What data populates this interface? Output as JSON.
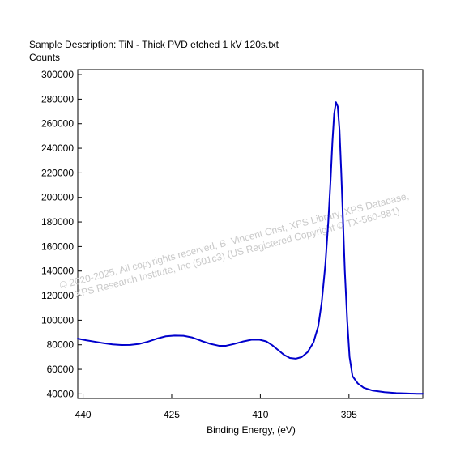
{
  "chart_data": {
    "type": "line",
    "title": "Sample Description:  TiN - Thick PVD etched 1 kV 120s.txt",
    "ylabel": "Counts",
    "xlabel": "Binding Energy, (eV)",
    "x_reversed": true,
    "xlim": [
      440.9,
      382.5
    ],
    "ylim": [
      36300,
      304000
    ],
    "x_ticks": [
      440,
      425,
      410,
      395
    ],
    "y_ticks": [
      40000,
      60000,
      80000,
      100000,
      120000,
      140000,
      160000,
      180000,
      200000,
      220000,
      240000,
      260000,
      280000,
      300000
    ],
    "grid": false,
    "legend": "none",
    "series": [
      {
        "color": "#0000cc",
        "points": [
          [
            440.9,
            85000
          ],
          [
            439.5,
            83700
          ],
          [
            438,
            82500
          ],
          [
            436.5,
            81300
          ],
          [
            435,
            80300
          ],
          [
            433.5,
            79800
          ],
          [
            432,
            79900
          ],
          [
            430.5,
            80700
          ],
          [
            429,
            82600
          ],
          [
            427.5,
            85000
          ],
          [
            426,
            86900
          ],
          [
            424.5,
            87500
          ],
          [
            423,
            87300
          ],
          [
            421.5,
            85900
          ],
          [
            420,
            83200
          ],
          [
            418.5,
            80800
          ],
          [
            417,
            79200
          ],
          [
            415.8,
            79200
          ],
          [
            414.5,
            80600
          ],
          [
            413,
            82600
          ],
          [
            411.5,
            84100
          ],
          [
            410.2,
            84200
          ],
          [
            409,
            82800
          ],
          [
            408,
            79700
          ],
          [
            407,
            75800
          ],
          [
            406,
            71800
          ],
          [
            405,
            69300
          ],
          [
            404,
            68700
          ],
          [
            403,
            70000
          ],
          [
            402,
            74000
          ],
          [
            401,
            82000
          ],
          [
            400.2,
            95000
          ],
          [
            399.6,
            115000
          ],
          [
            399,
            145000
          ],
          [
            398.5,
            180000
          ],
          [
            398.1,
            215000
          ],
          [
            397.8,
            245000
          ],
          [
            397.5,
            268000
          ],
          [
            397.2,
            277500
          ],
          [
            396.9,
            274000
          ],
          [
            396.6,
            255000
          ],
          [
            396.3,
            220000
          ],
          [
            396,
            180000
          ],
          [
            395.7,
            140000
          ],
          [
            395.3,
            100000
          ],
          [
            394.9,
            70000
          ],
          [
            394.4,
            54500
          ],
          [
            393.5,
            48500
          ],
          [
            392.5,
            45000
          ],
          [
            391,
            42700
          ],
          [
            389,
            41400
          ],
          [
            387,
            40700
          ],
          [
            385,
            40300
          ],
          [
            383.5,
            40100
          ],
          [
            382.5,
            40100
          ]
        ]
      }
    ],
    "watermark": [
      "©  2020-2025,  All copyrights reserved,   B. Vincent Crist,  XPS Library, XPS Database,",
      "XPS Research Institute, Inc (501c3)   (US Registered Copyright © TX-560-881)"
    ]
  }
}
